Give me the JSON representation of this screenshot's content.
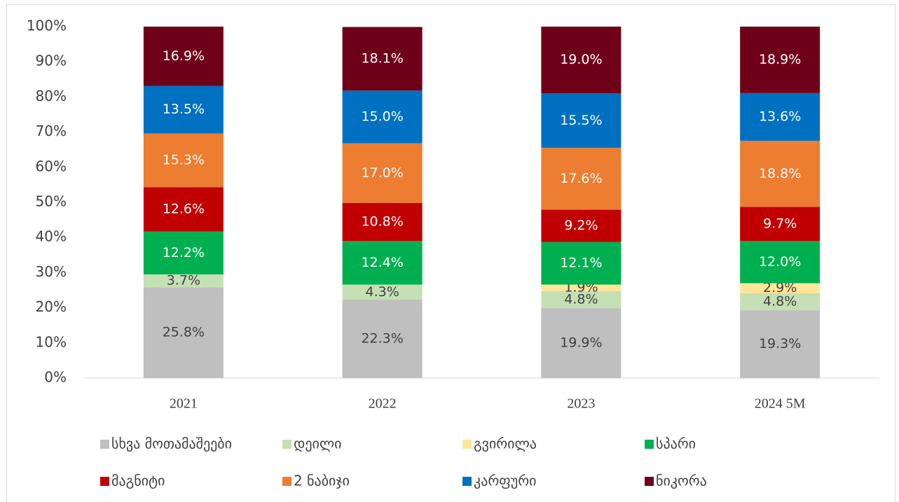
{
  "chart_data": {
    "type": "stacked_bar_percent",
    "categories": [
      "2021",
      "2022",
      "2023",
      "2024 5M"
    ],
    "ylim": [
      0,
      100
    ],
    "yticks": [
      {
        "value": 0,
        "label": "0%"
      },
      {
        "value": 10,
        "label": "10%"
      },
      {
        "value": 20,
        "label": "20%"
      },
      {
        "value": 30,
        "label": "30%"
      },
      {
        "value": 40,
        "label": "40%"
      },
      {
        "value": 50,
        "label": "50%"
      },
      {
        "value": 60,
        "label": "60%"
      },
      {
        "value": 70,
        "label": "70%"
      },
      {
        "value": 80,
        "label": "80%"
      },
      {
        "value": 90,
        "label": "90%"
      },
      {
        "value": 100,
        "label": "100%"
      }
    ],
    "legend": "bottom",
    "series": [
      {
        "name": "სხვა მოთამაშეები",
        "color": "#bfbfbf",
        "values": [
          25.8,
          22.3,
          19.9,
          19.3
        ],
        "value_labels": [
          "25.8%",
          "22.3%",
          "19.9%",
          "19.3%"
        ]
      },
      {
        "name": "დეილი",
        "color": "#c5e0b4",
        "values": [
          3.7,
          4.3,
          4.8,
          4.8
        ],
        "value_labels": [
          "3.7%",
          "4.3%",
          "4.8%",
          "4.8%"
        ]
      },
      {
        "name": "გვირილა",
        "color": "#ffe699",
        "values": [
          null,
          null,
          1.9,
          2.9
        ],
        "value_labels": [
          null,
          null,
          "1.9%",
          "2.9%"
        ]
      },
      {
        "name": "სპარი",
        "color": "#00b050",
        "values": [
          12.2,
          12.4,
          12.1,
          12.0
        ],
        "value_labels": [
          "12.2%",
          "12.4%",
          "12.1%",
          "12.0%"
        ]
      },
      {
        "name": "მაგნიტი",
        "color": "#c00000",
        "values": [
          12.6,
          10.8,
          9.2,
          9.7
        ],
        "value_labels": [
          "12.6%",
          "10.8%",
          "9.2%",
          "9.7%"
        ]
      },
      {
        "name": "2 ნაბიჯი",
        "color": "#ed7d31",
        "values": [
          15.3,
          17.0,
          17.6,
          18.8
        ],
        "value_labels": [
          "15.3%",
          "17.0%",
          "17.6%",
          "18.8%"
        ]
      },
      {
        "name": "კარფური",
        "color": "#0070c0",
        "values": [
          13.5,
          15.0,
          15.5,
          13.6
        ],
        "value_labels": [
          "13.5%",
          "15.0%",
          "15.5%",
          "13.6%"
        ]
      },
      {
        "name": "ნიკორა",
        "color": "#6f0019",
        "values": [
          16.9,
          18.1,
          19.0,
          18.9
        ],
        "value_labels": [
          "16.9%",
          "18.1%",
          "19.0%",
          "18.9%"
        ]
      }
    ]
  }
}
